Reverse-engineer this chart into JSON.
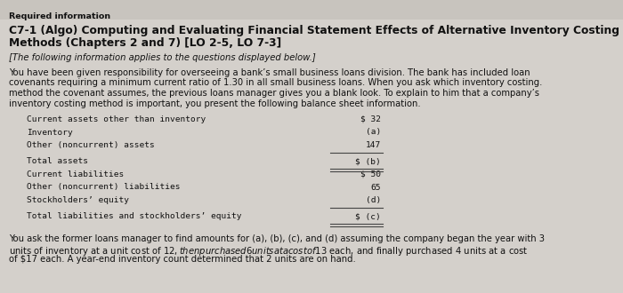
{
  "bg_color": "#d4d0cb",
  "header_bg": "#c8c4be",
  "required_info_label": "Required information",
  "title_line1": "C7-1 (Algo) Computing and Evaluating Financial Statement Effects of Alternative Inventory Costing",
  "title_line2": "Methods (Chapters 2 and 7) [LO 2-5, LO 7-3]",
  "italic_line": "[The following information applies to the questions displayed below.]",
  "body_line1": "You have been given responsibility for overseeing a bank’s small business loans division. The bank has included loan",
  "body_line2": "covenants requiring a minimum current ratio of 1.30 in all small business loans. When you ask which inventory costing.",
  "body_line3": "method the covenant assumes, the previous loans manager gives you a blank look. To explain to him that a company’s",
  "body_line4": "inventory costing method is important, you present the following balance sheet information.",
  "table_rows": [
    {
      "label": "Current assets other than inventory",
      "value": "$ 32",
      "underline": false,
      "double_ul": false,
      "gap_above": false
    },
    {
      "label": "Inventory",
      "value": "(a)",
      "underline": false,
      "double_ul": false,
      "gap_above": false
    },
    {
      "label": "Other (noncurrent) assets",
      "value": "147",
      "underline": true,
      "double_ul": false,
      "gap_above": false
    },
    {
      "label": "Total assets",
      "value": "$ (b)",
      "underline": true,
      "double_ul": true,
      "gap_above": true
    },
    {
      "label": "Current liabilities",
      "value": "$ 50",
      "underline": false,
      "double_ul": false,
      "gap_above": false
    },
    {
      "label": "Other (noncurrent) liabilities",
      "value": "65",
      "underline": false,
      "double_ul": false,
      "gap_above": false
    },
    {
      "label": "Stockholders’ equity",
      "value": "(d)",
      "underline": true,
      "double_ul": false,
      "gap_above": false
    },
    {
      "label": "Total liabilities and stockholders’ equity",
      "value": "$ (c)",
      "underline": true,
      "double_ul": true,
      "gap_above": true
    }
  ],
  "footer_line1": "You ask the former loans manager to find amounts for (a), (b), (c), and (d) assuming the company began the year with 3",
  "footer_line2": "units of inventory at a unit cost of $12, then purchased 6 units at a cost of $13 each, and finally purchased 4 units at a cost",
  "footer_line3": "of $17 each. A year-end inventory count determined that 2 units are on hand.",
  "text_color": "#111111",
  "required_fontsize": 6.8,
  "title_fontsize": 8.8,
  "body_fontsize": 7.2,
  "italic_fontsize": 7.2,
  "table_fontsize": 6.8,
  "footer_fontsize": 7.2
}
